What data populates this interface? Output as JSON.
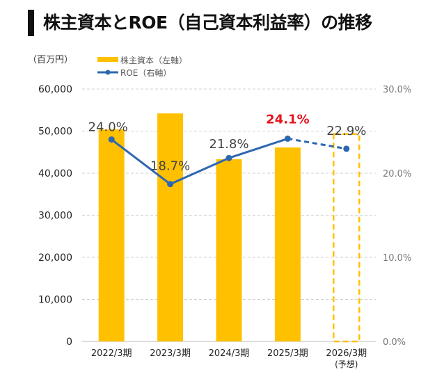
{
  "header": {
    "title": "株主資本とROE（自己資本利益率）の推移"
  },
  "chart_data": {
    "type": "bar+line",
    "categories": [
      "2022/3期",
      "2023/3期",
      "2024/3期",
      "2025/3期",
      "2026/3期"
    ],
    "category_sublabels": [
      "",
      "",
      "",
      "",
      "(予想)"
    ],
    "left_axis": {
      "unit": "（百万円）",
      "ylim": [
        0,
        60000
      ],
      "ticks": [
        "0",
        "10,000",
        "20,000",
        "30,000",
        "40,000",
        "50,000",
        "60,000"
      ],
      "tick_values": [
        0,
        10000,
        20000,
        30000,
        40000,
        50000,
        60000
      ]
    },
    "right_axis": {
      "ylim": [
        0,
        30
      ],
      "ticks": [
        "0.0%",
        "10.0%",
        "20.0%",
        "30.0%"
      ],
      "tick_values": [
        0,
        10,
        20,
        30
      ]
    },
    "grid": true,
    "legend_placement": "top-left",
    "series": [
      {
        "name": "株主資本（左軸）",
        "type": "bar",
        "axis": "left",
        "color": "#FFC000",
        "values": [
          50400,
          54200,
          43300,
          46100,
          49300
        ],
        "forecast": [
          false,
          false,
          false,
          false,
          true
        ]
      },
      {
        "name": "ROE（右軸）",
        "type": "line",
        "axis": "right",
        "color": "#2E67B1",
        "values": [
          24.0,
          18.7,
          21.8,
          24.1,
          22.9
        ],
        "labels": [
          "24.0%",
          "18.7%",
          "21.8%",
          "24.1%",
          "22.9%"
        ],
        "highlight_color": "#E8141C",
        "highlight_index": 3,
        "forecast": [
          false,
          false,
          false,
          false,
          true
        ]
      }
    ]
  }
}
